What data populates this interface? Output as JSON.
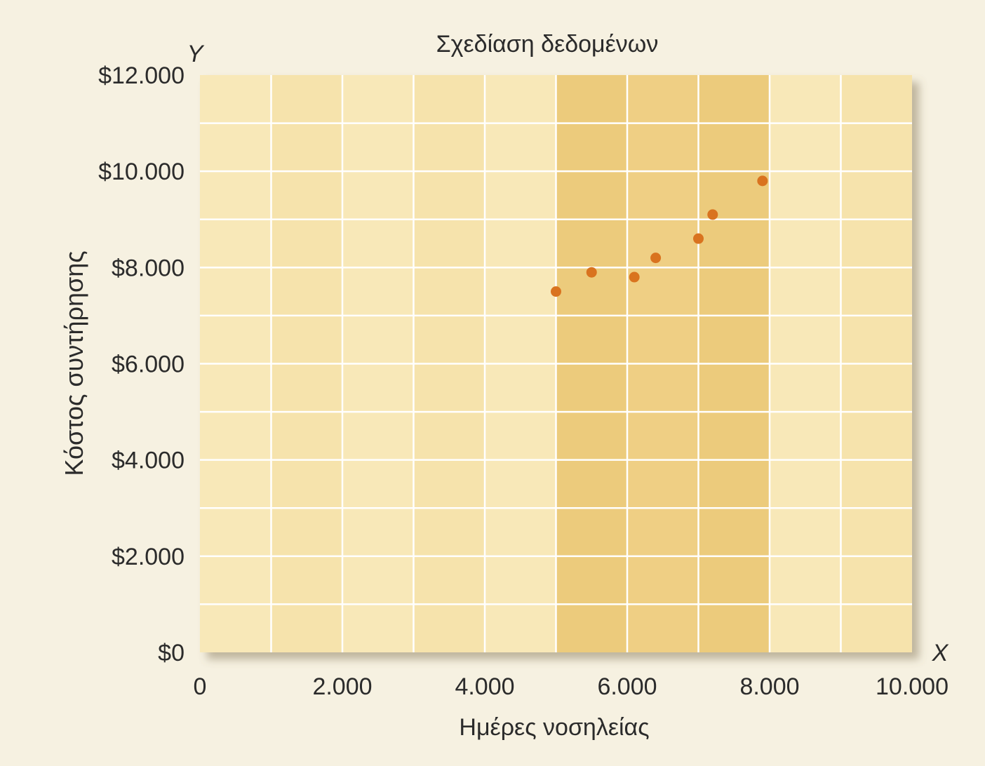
{
  "chart_data": {
    "type": "scatter",
    "title": "Σχεδίαση δεδομένων",
    "xlabel": "Ημέρες νοσηλείας",
    "ylabel": "Κόστος συντήρησης",
    "x_axis_letter": "X",
    "y_axis_letter": "Y",
    "xlim": [
      0,
      10000
    ],
    "ylim": [
      0,
      12000
    ],
    "x_ticks": [
      {
        "value": 0,
        "label": "0"
      },
      {
        "value": 2000,
        "label": "2.000"
      },
      {
        "value": 4000,
        "label": "4.000"
      },
      {
        "value": 6000,
        "label": "6.000"
      },
      {
        "value": 8000,
        "label": "8.000"
      },
      {
        "value": 10000,
        "label": "10.000"
      }
    ],
    "y_ticks": [
      {
        "value": 0,
        "label": "$0"
      },
      {
        "value": 2000,
        "label": "$2.000"
      },
      {
        "value": 4000,
        "label": "$4.000"
      },
      {
        "value": 6000,
        "label": "$6.000"
      },
      {
        "value": 8000,
        "label": "$8.000"
      },
      {
        "value": 10000,
        "label": "$10.000"
      },
      {
        "value": 12000,
        "label": "$12.000"
      }
    ],
    "grid": true,
    "highlight_band": {
      "x_start": 5000,
      "x_end": 8000
    },
    "points": [
      {
        "x": 5000,
        "y": 7500
      },
      {
        "x": 5500,
        "y": 7900
      },
      {
        "x": 6100,
        "y": 7800
      },
      {
        "x": 6400,
        "y": 8200
      },
      {
        "x": 7000,
        "y": 8600
      },
      {
        "x": 7200,
        "y": 9100
      },
      {
        "x": 7900,
        "y": 9800
      }
    ],
    "colors": {
      "background": "#f8e8b8",
      "band_light": "#f6e3ac",
      "band_dark": "#efcf84",
      "band_darker": "#eccb7c",
      "grid": "#ffffff",
      "point": "#d9731f"
    }
  }
}
